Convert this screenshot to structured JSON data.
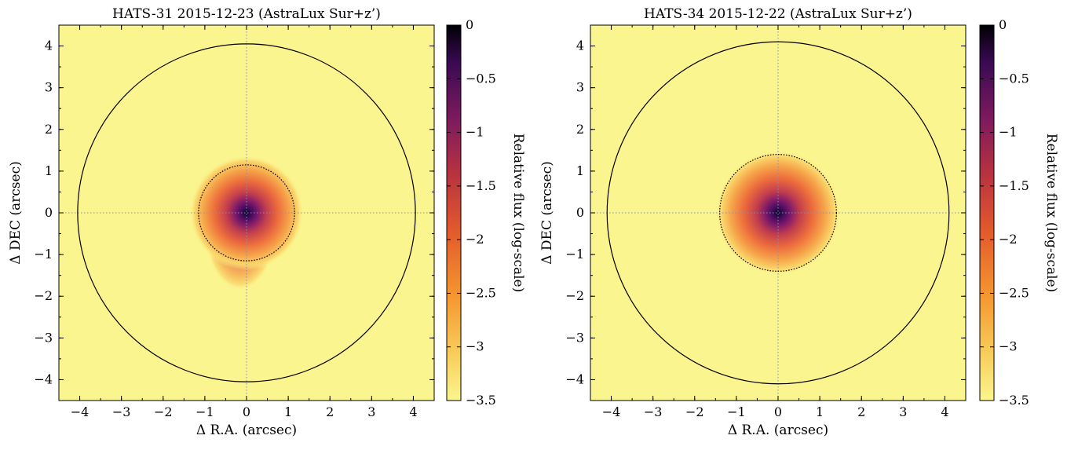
{
  "chart_data": [
    {
      "type": "heatmap",
      "title": "HATS-31 2015-12-23 (AstraLux Sur+z’)",
      "xlabel": "Δ R.A. (arcsec)",
      "ylabel": "Δ DEC (arcsec)",
      "xlim": [
        -4.5,
        4.5
      ],
      "ylim": [
        -4.5,
        4.5
      ],
      "xticks": [
        -4,
        -3,
        -2,
        -1,
        0,
        1,
        2,
        3,
        4
      ],
      "yticks": [
        -4,
        -3,
        -2,
        -1,
        0,
        1,
        2,
        3,
        4
      ],
      "xtick_labels": [
        "−4",
        "−3",
        "−2",
        "−1",
        "0",
        "1",
        "2",
        "3",
        "4"
      ],
      "ytick_labels": [
        "−4",
        "−3",
        "−2",
        "−1",
        "0",
        "1",
        "2",
        "3",
        "4"
      ],
      "colorbar": {
        "label": "Relative flux (log-scale)",
        "range": [
          -3.5,
          0
        ],
        "ticks": [
          0,
          -0.5,
          -1,
          -1.5,
          -2,
          -2.5,
          -3,
          -3.5
        ],
        "tick_labels": [
          "0",
          "−0.5",
          "−1",
          "−1.5",
          "−2",
          "−2.5",
          "−3",
          "−3.5"
        ],
        "colormap": "inferno-like"
      },
      "source": {
        "x": 0,
        "y": 0,
        "fwhm_extent_arcsec": 1.1,
        "elongation": "extended toward −y"
      },
      "inner_circle_radius_arcsec": 1.15,
      "outer_circle_radius_arcsec": 4.05,
      "crosshair": true
    },
    {
      "type": "heatmap",
      "title": "HATS-34 2015-12-22 (AstraLux Sur+z’)",
      "xlabel": "Δ R.A. (arcsec)",
      "ylabel": "Δ DEC (arcsec)",
      "xlim": [
        -4.5,
        4.5
      ],
      "ylim": [
        -4.5,
        4.5
      ],
      "xticks": [
        -4,
        -3,
        -2,
        -1,
        0,
        1,
        2,
        3,
        4
      ],
      "yticks": [
        -4,
        -3,
        -2,
        -1,
        0,
        1,
        2,
        3,
        4
      ],
      "xtick_labels": [
        "−4",
        "−3",
        "−2",
        "−1",
        "0",
        "1",
        "2",
        "3",
        "4"
      ],
      "ytick_labels": [
        "−4",
        "−3",
        "−2",
        "−1",
        "0",
        "1",
        "2",
        "3",
        "4"
      ],
      "colorbar": {
        "label": "Relative flux (log-scale)",
        "range": [
          -3.5,
          0
        ],
        "ticks": [
          0,
          -0.5,
          -1,
          -1.5,
          -2,
          -2.5,
          -3,
          -3.5
        ],
        "tick_labels": [
          "0",
          "−0.5",
          "−1",
          "−1.5",
          "−2",
          "−2.5",
          "−3",
          "−3.5"
        ],
        "colormap": "inferno-like"
      },
      "source": {
        "x": 0,
        "y": 0,
        "fwhm_extent_arcsec": 1.2,
        "elongation": "round"
      },
      "inner_circle_radius_arcsec": 1.4,
      "outer_circle_radius_arcsec": 4.1,
      "crosshair": true
    }
  ],
  "colors": {
    "background": "#fbf58f",
    "outer_circle": "#000000",
    "crosshair": "#8a8fb0"
  }
}
